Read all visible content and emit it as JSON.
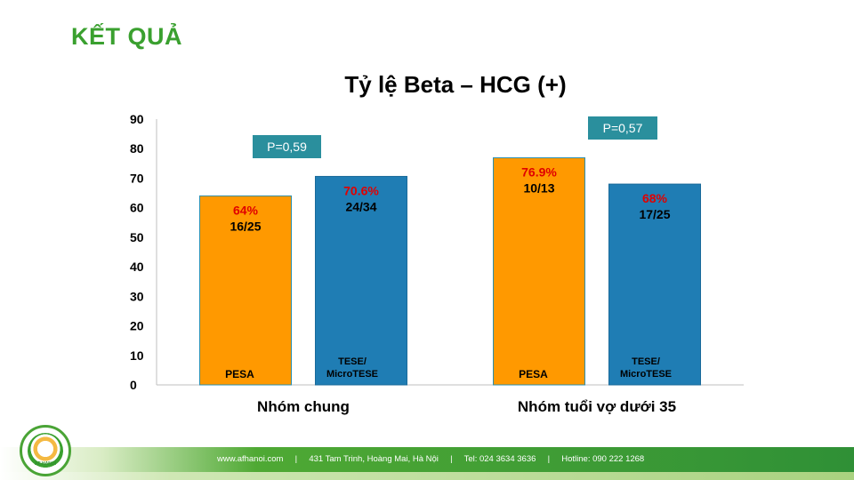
{
  "slide_title": "KẾT QUẢ",
  "colors": {
    "title_green": "#3aa02f",
    "pesa": "#ff9900",
    "tese": "#1f7db4",
    "pvalue_bg": "#2a8f9d",
    "percent_red": "#e00000"
  },
  "chart_data": {
    "type": "bar",
    "title": "Tỷ lệ Beta – HCG (+)",
    "categories": [
      "Nhóm chung",
      "Nhóm tuổi vợ dưới 35"
    ],
    "series": [
      {
        "name": "PESA",
        "values": [
          64,
          76.9
        ],
        "percent_labels": [
          "64%",
          "76.9%"
        ],
        "count_labels": [
          "16/25",
          "10/13"
        ],
        "inside_labels": [
          "PESA",
          "PESA"
        ]
      },
      {
        "name": "TESE/MicroTESE",
        "values": [
          70.6,
          68
        ],
        "percent_labels": [
          "70.6%",
          "68%"
        ],
        "count_labels": [
          "24/34",
          "17/25"
        ],
        "inside_labels": [
          "TESE/ MicroTESE",
          "TESE/ MicroTESE"
        ]
      }
    ],
    "p_values": [
      "P=0,59",
      "P=0,57"
    ],
    "ylim": [
      0,
      90
    ],
    "yticks": [
      0,
      10,
      20,
      30,
      40,
      50,
      60,
      70,
      80,
      90
    ],
    "grid": false,
    "legend": "none"
  },
  "footer": {
    "text": "www.afhanoi.com     |     431 Tam Trinh, Hoàng Mai, Hà Nội     |     Tel: 024 3634 3636     |     Hotline: 090 222 1268",
    "logo_text": "AF HANOI"
  }
}
